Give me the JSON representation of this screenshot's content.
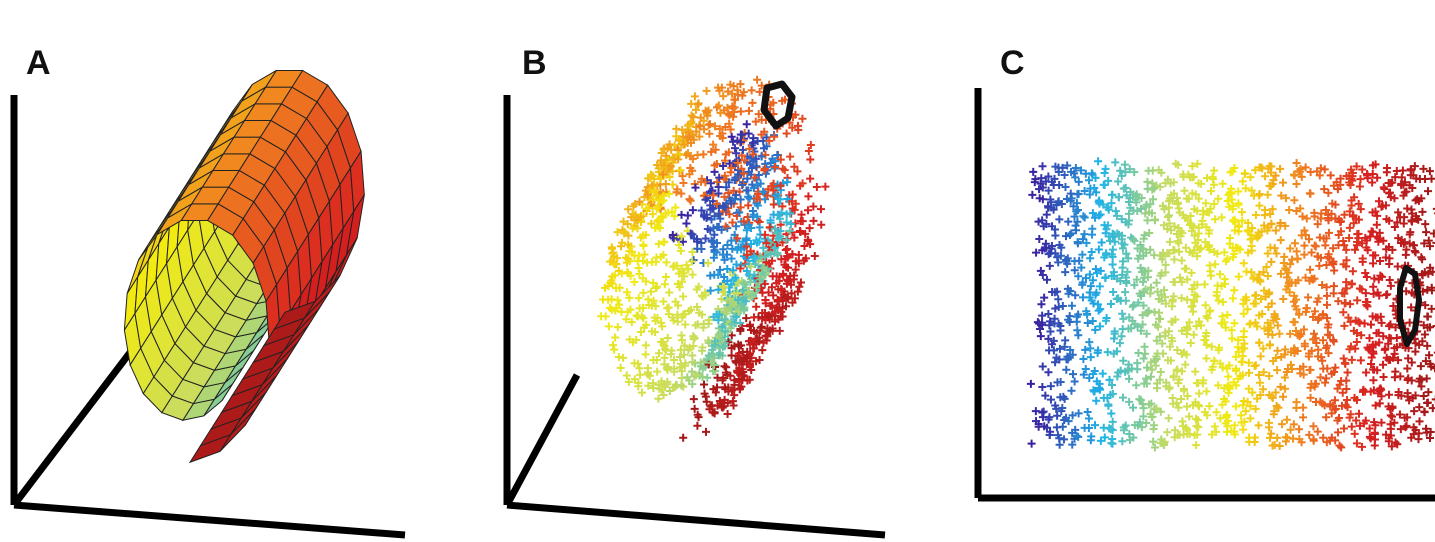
{
  "figure": {
    "panels": [
      {
        "id": "A",
        "label": "A"
      },
      {
        "id": "B",
        "label": "B"
      },
      {
        "id": "C",
        "label": "C"
      }
    ],
    "colormap": [
      "#3b1f9e",
      "#1fb4e8",
      "#c8dc60",
      "#f2ea10",
      "#f08020",
      "#d82020",
      "#a01818"
    ]
  }
}
